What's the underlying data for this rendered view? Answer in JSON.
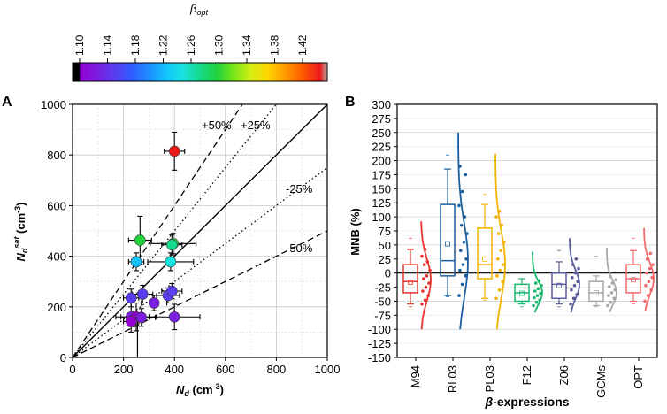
{
  "colorbar": {
    "title": "β",
    "title_sub": "opt",
    "ticks": [
      "1.10",
      "1.14",
      "1.18",
      "1.22",
      "1.26",
      "1.30",
      "1.34",
      "1.38",
      "1.42"
    ],
    "range": [
      1.08,
      1.46
    ],
    "stops": [
      "#000000",
      "#9400d3",
      "#7b1fe0",
      "#5b3cf0",
      "#2f5cff",
      "#1e8cff",
      "#12c2ff",
      "#19e3e0",
      "#14d98a",
      "#21d23a",
      "#7be61a",
      "#d5ee14",
      "#ffd400",
      "#ff9a00",
      "#ff5a00",
      "#ee1b1b",
      "#b0b0b0"
    ]
  },
  "chart_data": [
    {
      "panel": "A",
      "type": "scatter",
      "xlabel_main": "N",
      "xlabel_sub": "d",
      "xlabel_unit": " (cm",
      "xlabel_sup": "-3",
      "xlabel_end": ")",
      "ylabel_main": "N",
      "ylabel_sub": "d",
      "ylabel_sup": "sat",
      "ylabel_unit": " (cm",
      "ylabel_sup2": "-3",
      "ylabel_end": ")",
      "xlim": [
        0,
        1000
      ],
      "ylim": [
        0,
        1000
      ],
      "xticks": [
        0,
        200,
        400,
        600,
        800,
        1000
      ],
      "yticks": [
        0,
        200,
        400,
        600,
        800,
        1000
      ],
      "lines": [
        {
          "label": "1:1",
          "slope": 1.0,
          "style": "solid"
        },
        {
          "label": "+25%",
          "slope": 1.25,
          "style": "dotted"
        },
        {
          "label": "-25%",
          "slope": 0.75,
          "style": "dotted"
        },
        {
          "label": "+50%",
          "slope": 1.5,
          "style": "dashed"
        },
        {
          "label": "-50%",
          "slope": 0.5,
          "style": "dashed"
        }
      ],
      "line_labels": {
        "p50": "+50%",
        "p25": "+25%",
        "m25": "-25%",
        "m50": "-50%"
      },
      "points": [
        {
          "x": 400,
          "y": 815,
          "xerr": 40,
          "yerr": 75,
          "beta": 1.44
        },
        {
          "x": 265,
          "y": 463,
          "xerr": 45,
          "yerr": 95,
          "beta": 1.3
        },
        {
          "x": 395,
          "y": 450,
          "xerr": 90,
          "yerr": 40,
          "beta": 1.3
        },
        {
          "x": 390,
          "y": 445,
          "xerr": 40,
          "yerr": 40,
          "beta": 1.28
        },
        {
          "x": 250,
          "y": 378,
          "xerr": 30,
          "yerr": 35,
          "beta": 1.22
        },
        {
          "x": 385,
          "y": 378,
          "xerr": 90,
          "yerr": 35,
          "beta": 1.24
        },
        {
          "x": 230,
          "y": 235,
          "xerr": 30,
          "yerr": 35,
          "beta": 1.14
        },
        {
          "x": 275,
          "y": 250,
          "xerr": 40,
          "yerr": 35,
          "beta": 1.16
        },
        {
          "x": 320,
          "y": 215,
          "xerr": 50,
          "yerr": 30,
          "beta": 1.13
        },
        {
          "x": 375,
          "y": 245,
          "xerr": 45,
          "yerr": 30,
          "beta": 1.15
        },
        {
          "x": 390,
          "y": 262,
          "xerr": 40,
          "yerr": 30,
          "beta": 1.16
        },
        {
          "x": 230,
          "y": 160,
          "xerr": 40,
          "yerr": 60,
          "beta": 1.12
        },
        {
          "x": 250,
          "y": 160,
          "xerr": 80,
          "yerr": 55,
          "beta": 1.11
        },
        {
          "x": 270,
          "y": 158,
          "xerr": 55,
          "yerr": 35,
          "beta": 1.12
        },
        {
          "x": 230,
          "y": 142,
          "xerr": 30,
          "yerr": 20,
          "beta": 1.11
        },
        {
          "x": 400,
          "y": 160,
          "xerr": 100,
          "yerr": 50,
          "beta": 1.12
        }
      ]
    },
    {
      "panel": "B",
      "type": "box",
      "xlabel_prefix": "β",
      "xlabel_suffix": "-expressions",
      "ylabel": "MNB (%)",
      "ylim": [
        -150,
        300
      ],
      "yticks": [
        -150,
        -125,
        -100,
        -75,
        -50,
        -25,
        0,
        25,
        50,
        75,
        100,
        125,
        150,
        175,
        200,
        225,
        250,
        275,
        300
      ],
      "categories": [
        "M94",
        "RL03",
        "PL03",
        "F12",
        "Z06",
        "GCMs",
        "OPT"
      ],
      "series": [
        {
          "name": "M94",
          "color": "#e8332e",
          "q1": -35,
          "median": -15,
          "q3": 15,
          "whisker_low": -55,
          "whisker_high": 42,
          "mean": -16,
          "min": -60,
          "max": 62,
          "points": [
            -55,
            -48,
            -40,
            -32,
            -25,
            -18,
            -10,
            -5,
            5,
            15,
            20,
            30,
            42
          ],
          "dist_low": -100,
          "dist_high": 92,
          "dist_peak": -12
        },
        {
          "name": "RL03",
          "color": "#1a5f9e",
          "q1": -5,
          "median": 22,
          "q3": 122,
          "whisker_low": -40,
          "whisker_high": 185,
          "mean": 52,
          "min": -42,
          "max": 210,
          "points": [
            -40,
            -20,
            -5,
            5,
            15,
            25,
            40,
            55,
            70,
            85,
            100,
            120,
            145,
            175,
            190
          ],
          "dist_low": -100,
          "dist_high": 250,
          "dist_peak": 22
        },
        {
          "name": "PL03",
          "color": "#f2b300",
          "q1": -10,
          "median": 15,
          "q3": 80,
          "whisker_low": -45,
          "whisker_high": 122,
          "mean": 25,
          "min": -48,
          "max": 140,
          "points": [
            -45,
            -30,
            -15,
            -5,
            5,
            15,
            25,
            40,
            55,
            70,
            85,
            100,
            110
          ],
          "dist_low": -100,
          "dist_high": 212,
          "dist_peak": 15
        },
        {
          "name": "F12",
          "color": "#19b86e",
          "q1": -50,
          "median": -35,
          "q3": -20,
          "whisker_low": -55,
          "whisker_high": -10,
          "mean": -36,
          "min": -60,
          "max": -10,
          "points": [
            -58,
            -52,
            -48,
            -44,
            -40,
            -36,
            -32,
            -28,
            -22,
            -18,
            -14
          ],
          "dist_low": -70,
          "dist_high": 38,
          "dist_peak": -35
        },
        {
          "name": "Z06",
          "color": "#5a5c9c",
          "q1": -45,
          "median": -20,
          "q3": 0,
          "whisker_low": -55,
          "whisker_high": 20,
          "mean": -22,
          "min": -60,
          "max": 40,
          "points": [
            -55,
            -45,
            -38,
            -30,
            -22,
            -15,
            -8,
            0,
            8,
            15,
            25
          ],
          "dist_low": -70,
          "dist_high": 62,
          "dist_peak": -20
        },
        {
          "name": "GCMs",
          "color": "#a8a8a8",
          "q1": -50,
          "median": -35,
          "q3": -15,
          "whisker_low": -58,
          "whisker_high": -5,
          "mean": -35,
          "min": -60,
          "max": 30,
          "points": [
            -58,
            -52,
            -45,
            -40,
            -35,
            -30,
            -24,
            -18,
            -12,
            -6
          ],
          "dist_low": -70,
          "dist_high": 45,
          "dist_peak": -35
        },
        {
          "name": "OPT",
          "color": "#f26a6a",
          "q1": -35,
          "median": -10,
          "q3": 15,
          "whisker_low": -50,
          "whisker_high": 40,
          "mean": -12,
          "min": -55,
          "max": 62,
          "points": [
            -50,
            -40,
            -30,
            -22,
            -15,
            -8,
            0,
            8,
            15,
            25,
            35
          ],
          "dist_low": -68,
          "dist_high": 80,
          "dist_peak": -10
        }
      ]
    }
  ],
  "panel_labels": {
    "a": "A",
    "b": "B"
  }
}
